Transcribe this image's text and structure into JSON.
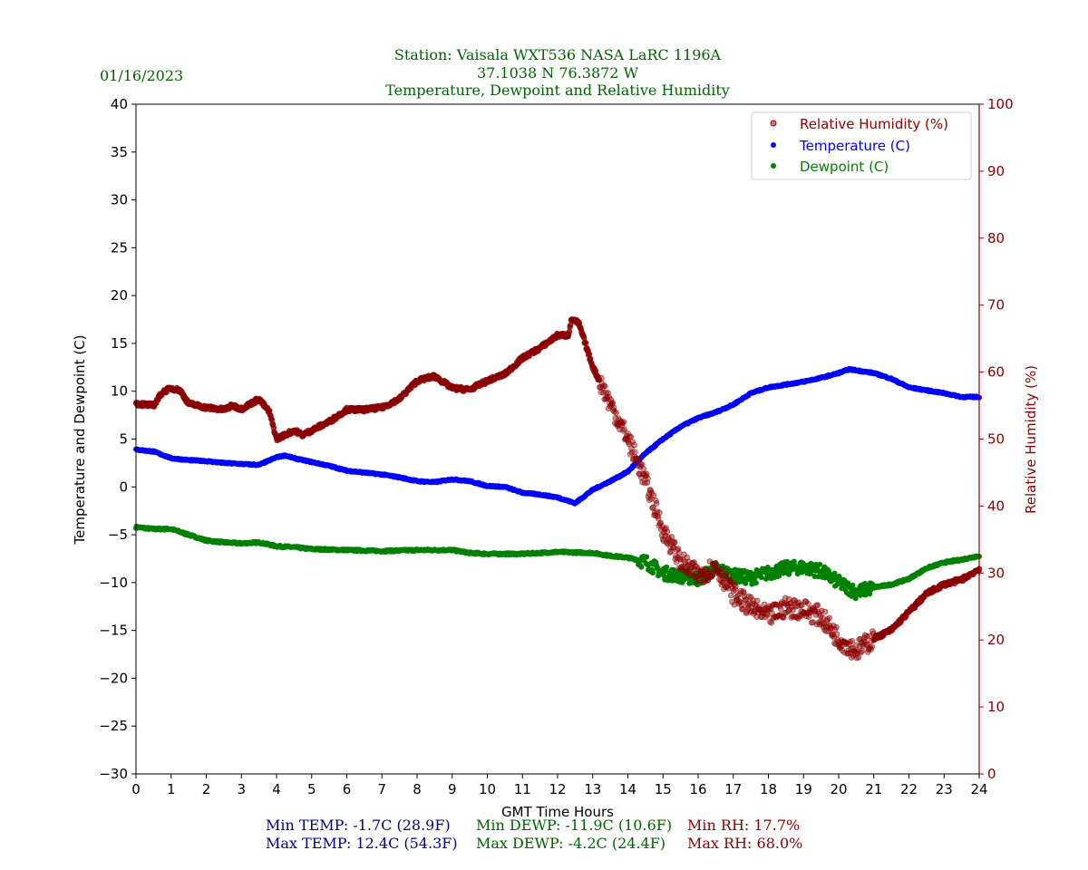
{
  "date": "01/16/2023",
  "title_lines": [
    "Station:  Vaisala WXT536  NASA LaRC 1196A",
    "37.1038 N 76.3872 W",
    "Temperature, Dewpoint and Relative Humidity"
  ],
  "stats": {
    "min_temp": "Min TEMP: -1.7C (28.9F)",
    "max_temp": "Max TEMP: 12.4C (54.3F)",
    "min_dewp": "Min DEWP: -11.9C (10.6F)",
    "max_dewp": "Max DEWP: -4.2C (24.4F)",
    "min_rh": "Min RH: 17.7%",
    "max_rh": "Max RH: 68.0%"
  },
  "colors": {
    "title": "#006400",
    "temp": "#0000ff",
    "dewp": "#008000",
    "rh": "#8b0000",
    "stat_temp": "#00008b"
  },
  "chart_data": {
    "type": "scatter",
    "xlabel": "GMT Time Hours",
    "ylabel": "Temperature and Dewpoint (C)",
    "y2label": "Relative Humidity (%)",
    "xlim": [
      0,
      24
    ],
    "ylim": [
      -30,
      40
    ],
    "y2lim": [
      0,
      100
    ],
    "xticks": [
      0,
      1,
      2,
      3,
      4,
      5,
      6,
      7,
      8,
      9,
      10,
      11,
      12,
      13,
      14,
      15,
      16,
      17,
      18,
      19,
      20,
      21,
      22,
      23,
      24
    ],
    "yticks": [
      -30,
      -25,
      -20,
      -15,
      -10,
      -5,
      0,
      5,
      10,
      15,
      20,
      25,
      30,
      35,
      40
    ],
    "y2ticks": [
      0,
      10,
      20,
      30,
      40,
      50,
      60,
      70,
      80,
      90,
      100
    ],
    "legend_position": "top-right",
    "series": [
      {
        "name": "Relative Humidity (%)",
        "axis": "right",
        "color": "#8b0000",
        "x": [
          0,
          0.5,
          0.75,
          1,
          1.25,
          1.5,
          2,
          2.5,
          2.75,
          3,
          3.5,
          3.8,
          4,
          4.5,
          4.75,
          5,
          5.5,
          6,
          6.5,
          7,
          7.5,
          8,
          8.5,
          9,
          9.5,
          10,
          10.5,
          11,
          11.5,
          12,
          12.3,
          12.4,
          12.6,
          13,
          13.5,
          14,
          14.5,
          15,
          15.5,
          16,
          16.5,
          17,
          17.5,
          18,
          18.5,
          19,
          19.5,
          20,
          20.5,
          21,
          21.5,
          22,
          22.5,
          23,
          23.5,
          24
        ],
        "y": [
          55.3,
          55,
          57,
          57.6,
          57.3,
          55.3,
          54.7,
          54.4,
          55,
          54.5,
          56,
          54,
          50,
          51.3,
          50.6,
          51.3,
          52.6,
          54.4,
          54.4,
          54.7,
          56,
          58.7,
          59.4,
          57.6,
          57.4,
          58.7,
          59.7,
          62.1,
          63.6,
          65.5,
          65.5,
          67.9,
          67.3,
          60.8,
          55.3,
          50,
          43.8,
          36.4,
          31.7,
          29.6,
          31,
          26.9,
          24.9,
          23.5,
          24.9,
          24.6,
          23.5,
          20.2,
          18.4,
          20.2,
          21.5,
          24.2,
          26.9,
          28.3,
          29,
          30.6
        ]
      },
      {
        "name": "Temperature (C)",
        "axis": "left",
        "color": "#0000ff",
        "x": [
          0,
          0.5,
          1,
          1.5,
          2,
          2.5,
          3,
          3.5,
          4,
          4.25,
          4.5,
          5,
          5.5,
          6,
          6.5,
          7,
          7.5,
          8,
          8.5,
          9,
          9.5,
          10,
          10.5,
          11,
          11.5,
          12,
          12.5,
          13,
          13.5,
          14,
          14.5,
          15,
          15.5,
          16,
          16.5,
          17,
          17.5,
          18,
          18.5,
          19,
          19.5,
          20,
          20.3,
          21,
          21.5,
          22,
          22.5,
          23,
          23.5,
          24
        ],
        "y": [
          3.9,
          3.7,
          3.0,
          2.8,
          2.7,
          2.5,
          2.4,
          2.3,
          3.1,
          3.3,
          3.0,
          2.6,
          2.2,
          1.7,
          1.5,
          1.3,
          1.0,
          0.6,
          0.5,
          0.8,
          0.6,
          0.1,
          0.0,
          -0.6,
          -0.8,
          -1.1,
          -1.7,
          -0.3,
          0.6,
          1.6,
          3.5,
          5.0,
          6.3,
          7.2,
          7.8,
          8.6,
          9.8,
          10.4,
          10.7,
          11.0,
          11.4,
          11.9,
          12.3,
          11.9,
          11.3,
          10.4,
          10.1,
          9.8,
          9.4,
          9.4
        ]
      },
      {
        "name": "Dewpoint (C)",
        "axis": "left",
        "color": "#008000",
        "x": [
          0,
          0.5,
          1,
          1.5,
          2,
          2.5,
          3,
          3.5,
          4,
          4.5,
          5,
          6,
          7,
          8,
          9,
          9.5,
          10,
          11,
          12,
          13,
          13.5,
          14,
          14.5,
          15,
          15.5,
          16,
          16.5,
          17,
          17.5,
          18,
          18.5,
          19,
          19.5,
          20,
          20.5,
          21,
          21.5,
          22,
          22.5,
          23,
          23.5,
          24
        ],
        "y": [
          -4.2,
          -4.4,
          -4.4,
          -5.0,
          -5.6,
          -5.8,
          -5.9,
          -5.8,
          -6.2,
          -6.3,
          -6.5,
          -6.6,
          -6.7,
          -6.6,
          -6.6,
          -6.9,
          -7.0,
          -7.0,
          -6.8,
          -6.9,
          -7.2,
          -7.4,
          -7.8,
          -9.0,
          -9.3,
          -9.6,
          -8.5,
          -9.3,
          -9.5,
          -9.0,
          -8.5,
          -8.4,
          -8.8,
          -10.0,
          -11.0,
          -10.5,
          -10.2,
          -9.6,
          -8.5,
          -7.9,
          -7.6,
          -7.2
        ]
      }
    ]
  }
}
